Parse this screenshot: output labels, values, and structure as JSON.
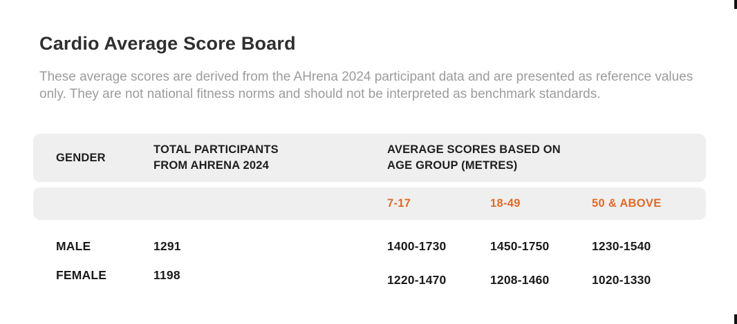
{
  "colors": {
    "accent_orange": "#df6a28",
    "row_background": "#efefef",
    "title_text": "#2f2f2f",
    "muted_text": "#9c9c9c",
    "data_text": "#1a1a1a"
  },
  "header": {
    "title": "Cardio Average Score Board",
    "description": "These average scores are derived from the AHrena 2024 participant data and are presented as reference values only. They are not national fitness norms and should not be interpreted as benchmark standards."
  },
  "table": {
    "columns": {
      "gender": "GENDER",
      "participants": "TOTAL PARTICIPANTS FROM AHRENA 2024",
      "scores": "AVERAGE SCORES BASED ON AGE GROUP (METRES)",
      "age_groups": [
        "7-17",
        "18-49",
        "50 & ABOVE"
      ]
    },
    "rows": [
      {
        "gender": "MALE",
        "participants": "1291",
        "scores": [
          "1400-1730",
          "1450-1750",
          "1230-1540"
        ]
      },
      {
        "gender": "FEMALE",
        "participants": "1198",
        "scores": [
          "1220-1470",
          "1208-1460",
          "1020-1330"
        ]
      }
    ]
  }
}
